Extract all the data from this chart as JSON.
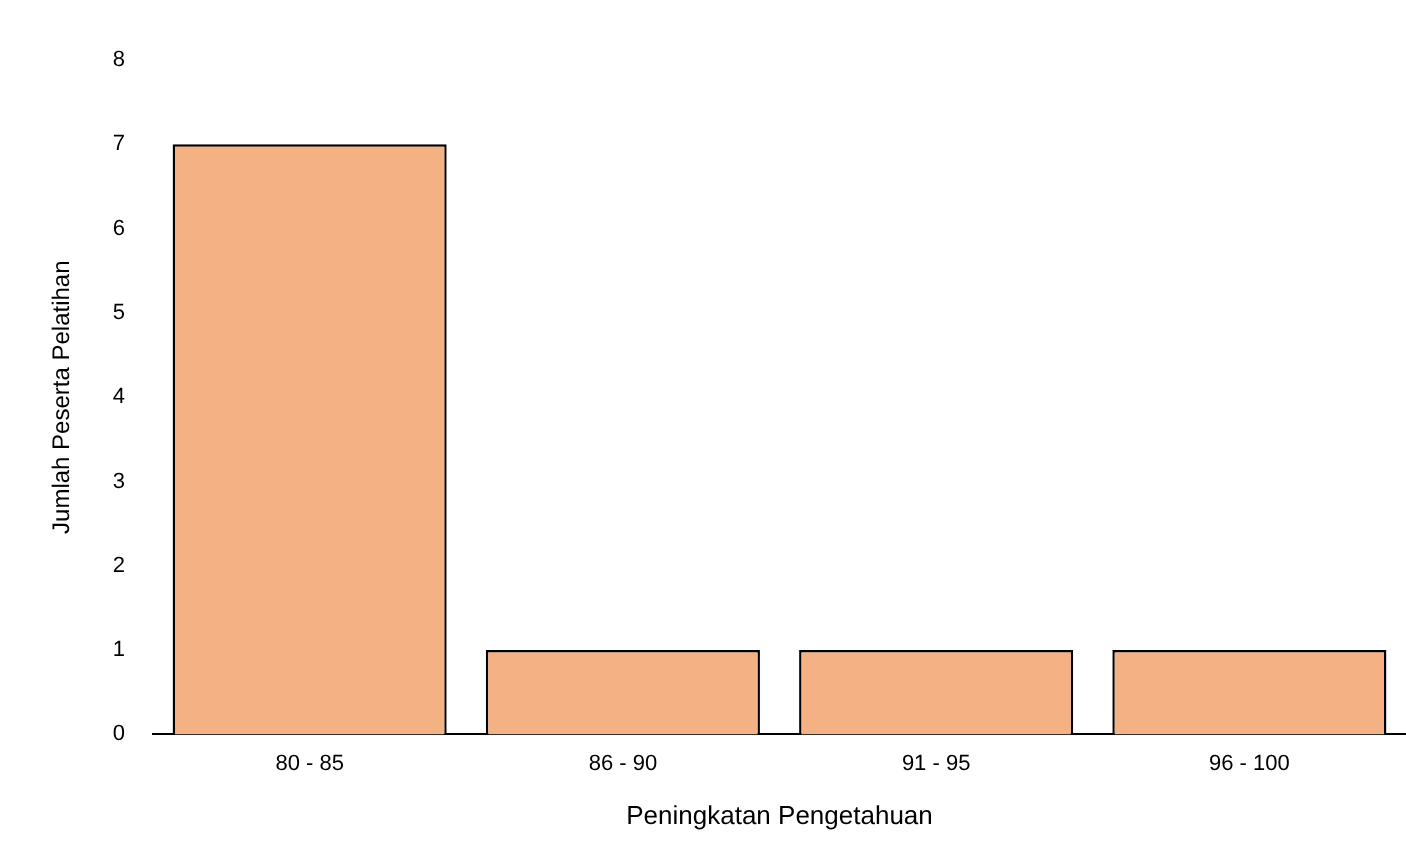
{
  "chart_data": {
    "type": "bar",
    "xlabel": "Peningkatan Pengetahuan",
    "ylabel": "Jumlah Peserta Pelatihan",
    "categories": [
      "80 - 85",
      "86 - 90",
      "91 - 95",
      "96 - 100"
    ],
    "values": [
      7,
      1,
      1,
      1
    ],
    "color": "#f4b183",
    "ylim": [
      0,
      8
    ],
    "yticks": [
      0,
      1,
      2,
      3,
      4,
      5,
      6,
      7,
      8
    ],
    "grid": false,
    "legend": false
  }
}
